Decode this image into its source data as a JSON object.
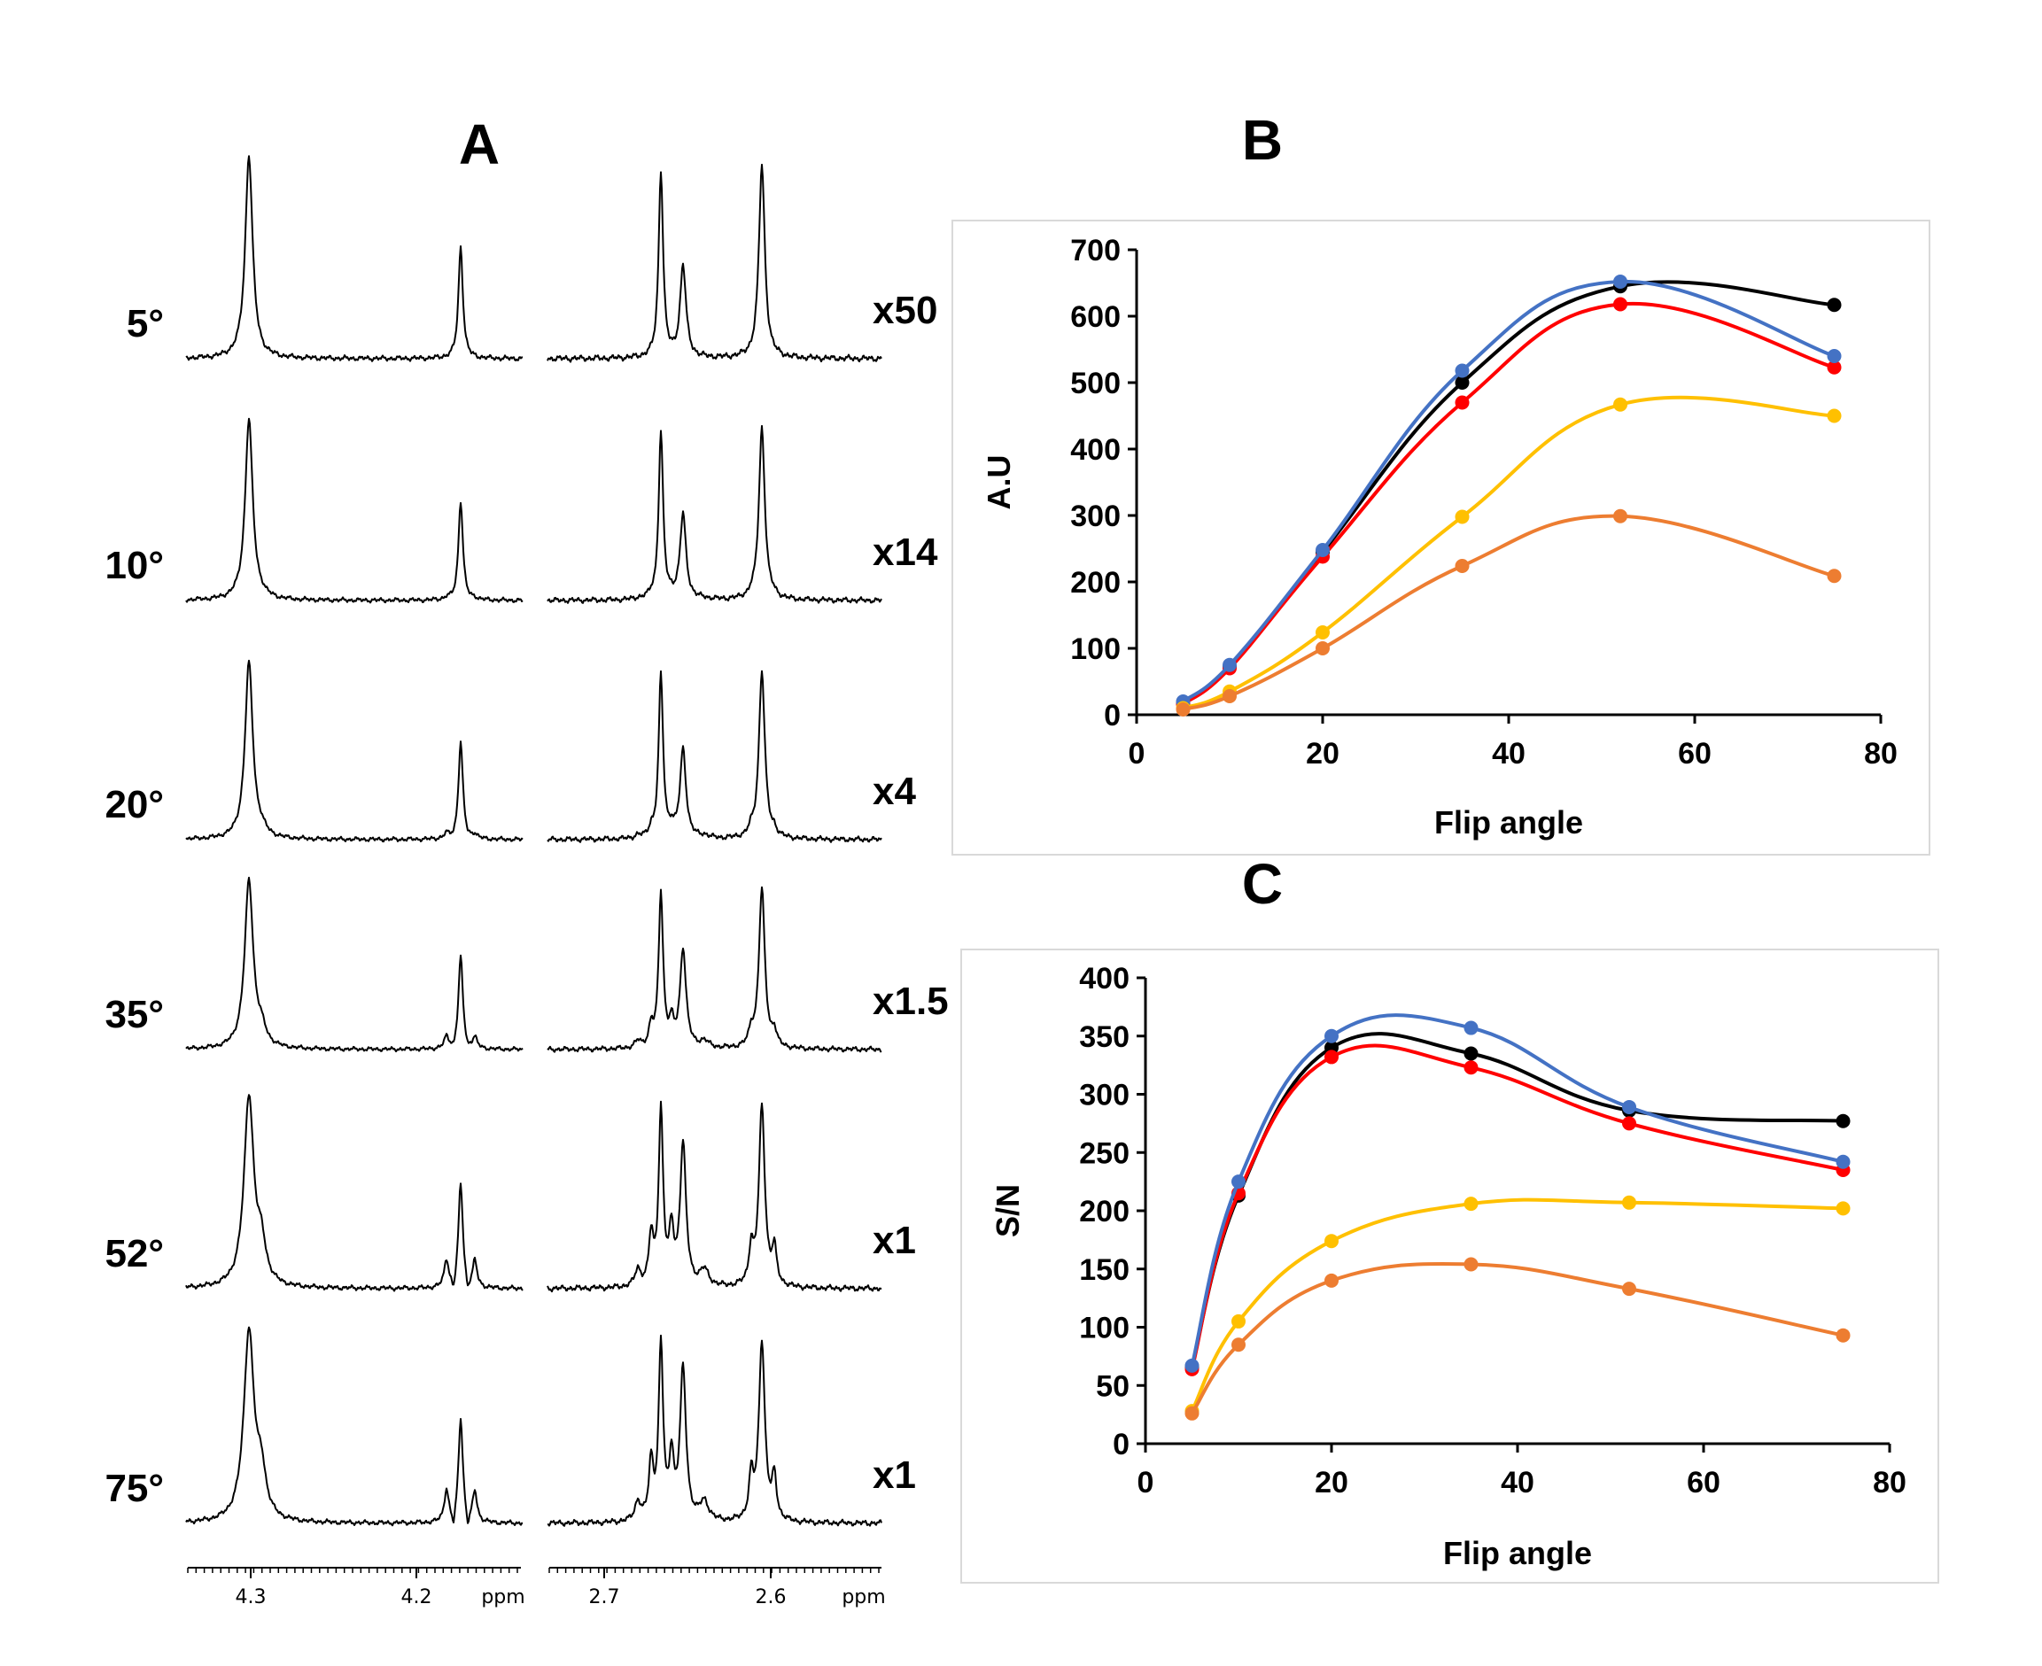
{
  "panel_a": {
    "letter": "A",
    "rows": [
      {
        "angle": "5°",
        "scale": "x50",
        "multiplet": 0.0
      },
      {
        "angle": "10°",
        "scale": "x14",
        "multiplet": 0.05
      },
      {
        "angle": "20°",
        "scale": "x4",
        "multiplet": 0.15
      },
      {
        "angle": "35°",
        "scale": "x1.5",
        "multiplet": 0.4
      },
      {
        "angle": "52°",
        "scale": "x1",
        "multiplet": 0.85
      },
      {
        "angle": "75°",
        "scale": "x1",
        "multiplet": 1.0
      }
    ],
    "axis_left": {
      "ticks": [
        "4.3",
        "4.2"
      ],
      "unit": "ppm"
    },
    "axis_right": {
      "ticks": [
        "2.7",
        "2.6"
      ],
      "unit": "ppm"
    }
  },
  "colors": {
    "black": "#000000",
    "red": "#ff0000",
    "blue": "#4472c4",
    "yellow": "#ffc000",
    "orange": "#ed7d31"
  },
  "chart_data": [
    {
      "id": "B",
      "letter": "B",
      "type": "line",
      "xlabel": "Flip angle",
      "ylabel": "A.U",
      "xlim": [
        0,
        80
      ],
      "ylim": [
        0,
        700
      ],
      "xticks": [
        0,
        20,
        40,
        60,
        80
      ],
      "yticks": [
        0,
        100,
        200,
        300,
        400,
        500,
        600,
        700
      ],
      "x": [
        5,
        10,
        20,
        35,
        52,
        75
      ],
      "series": [
        {
          "name": "black",
          "color": "#000000",
          "values": [
            18,
            72,
            245,
            500,
            645,
            617
          ]
        },
        {
          "name": "red",
          "color": "#ff0000",
          "values": [
            16,
            70,
            238,
            470,
            618,
            523
          ]
        },
        {
          "name": "blue",
          "color": "#4472c4",
          "values": [
            20,
            75,
            248,
            518,
            652,
            540
          ]
        },
        {
          "name": "yellow",
          "color": "#ffc000",
          "values": [
            10,
            35,
            124,
            298,
            467,
            450
          ]
        },
        {
          "name": "orange",
          "color": "#ed7d31",
          "values": [
            8,
            28,
            100,
            224,
            299,
            209
          ]
        }
      ]
    },
    {
      "id": "C",
      "letter": "C",
      "type": "line",
      "xlabel": "Flip angle",
      "ylabel": "S/N",
      "xlim": [
        0,
        80
      ],
      "ylim": [
        0,
        400
      ],
      "xticks": [
        0,
        20,
        40,
        60,
        80
      ],
      "yticks": [
        0,
        50,
        100,
        150,
        200,
        250,
        300,
        350,
        400
      ],
      "x": [
        5,
        10,
        20,
        35,
        52,
        75
      ],
      "series": [
        {
          "name": "black",
          "color": "#000000",
          "values": [
            66,
            213,
            340,
            335,
            286,
            277
          ]
        },
        {
          "name": "red",
          "color": "#ff0000",
          "values": [
            64,
            215,
            332,
            323,
            275,
            235
          ]
        },
        {
          "name": "blue",
          "color": "#4472c4",
          "values": [
            67,
            225,
            350,
            357,
            289,
            242
          ]
        },
        {
          "name": "yellow",
          "color": "#ffc000",
          "values": [
            28,
            105,
            174,
            206,
            207,
            202
          ]
        },
        {
          "name": "orange",
          "color": "#ed7d31",
          "values": [
            26,
            85,
            140,
            154,
            133,
            93
          ]
        }
      ]
    }
  ]
}
